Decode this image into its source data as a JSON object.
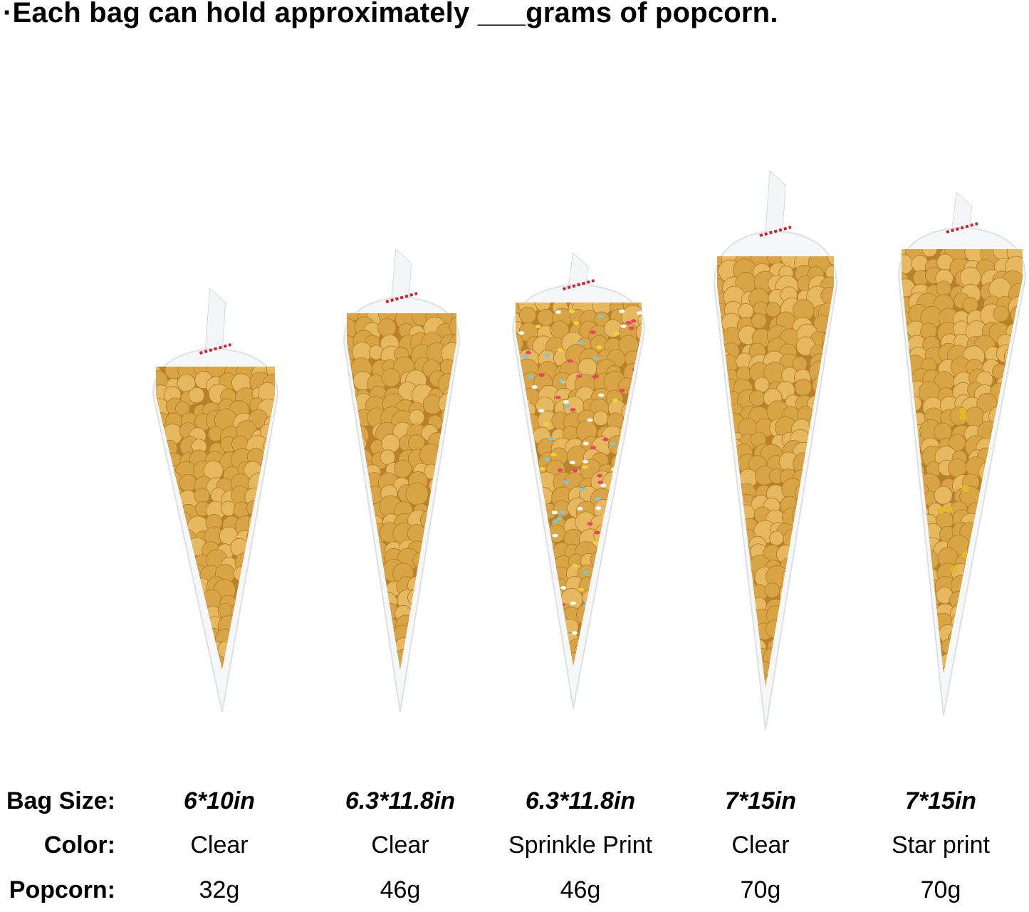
{
  "headline": "·Each bag can hold approximately ___grams of popcorn.",
  "table": {
    "labels": {
      "size": "Bag Size:",
      "color": "Color:",
      "popcorn": "Popcorn:"
    },
    "bags": [
      {
        "size": "6*10in",
        "color": "Clear",
        "popcorn": "32g",
        "print": "none"
      },
      {
        "size": "6.3*11.8in",
        "color": "Clear",
        "popcorn": "46g",
        "print": "none"
      },
      {
        "size": "6.3*11.8in",
        "color": "Sprinkle Print",
        "popcorn": "46g",
        "print": "sprinkle"
      },
      {
        "size": "7*15in",
        "color": "Clear",
        "popcorn": "70g",
        "print": "none"
      },
      {
        "size": "7*15in",
        "color": "Star print",
        "popcorn": "70g",
        "print": "star"
      }
    ]
  },
  "colors": {
    "popcorn": "#d9a446",
    "popcorn_dark": "#b9822a",
    "tie": "#c8252b",
    "star": "#e2b92a"
  }
}
